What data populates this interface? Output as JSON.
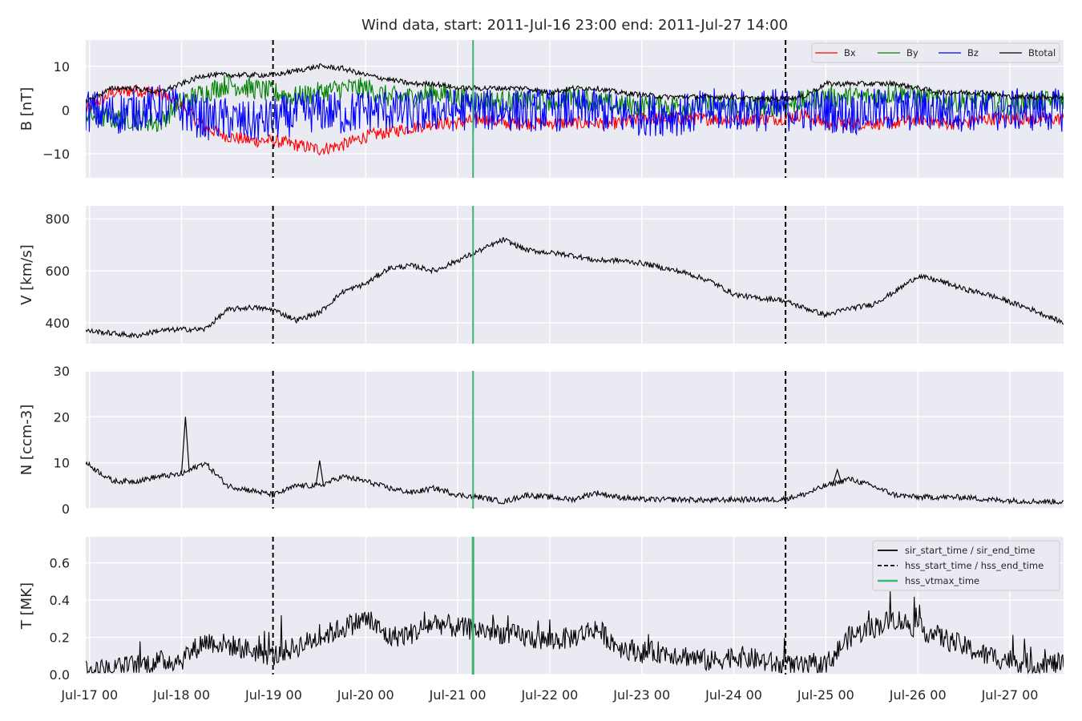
{
  "title": "Wind data, start: 2011-Jul-16 23:00  end: 2011-Jul-27 14:00",
  "colors": {
    "background": "#eaeaf2",
    "grid": "#ffffff",
    "Bx": "#ff0000",
    "By": "#008000",
    "Bz": "#0000ff",
    "Btotal": "#000000",
    "event_line": "#000000",
    "vtmax_line": "#3cb371"
  },
  "chart_data": [
    {
      "type": "line",
      "ylabel": "B [nT]",
      "yticks": [
        -10,
        0,
        10
      ],
      "ylim": [
        -15.5,
        16
      ],
      "grid": true,
      "legend_position": "top-right",
      "legend_layout": "one row",
      "xtick_labels": [],
      "series": [
        {
          "name": "Bx",
          "color": "#ff0000",
          "x": [
            "2011-07-16 23:00",
            "2011-07-17 06:00",
            "2011-07-17 12:00",
            "2011-07-17 18:00",
            "2011-07-18 00:00",
            "2011-07-18 06:00",
            "2011-07-18 12:00",
            "2011-07-18 18:00",
            "2011-07-19 00:00",
            "2011-07-19 06:00",
            "2011-07-19 12:00",
            "2011-07-19 18:00",
            "2011-07-20 00:00",
            "2011-07-20 06:00",
            "2011-07-20 12:00",
            "2011-07-20 18:00",
            "2011-07-21 00:00",
            "2011-07-21 06:00",
            "2011-07-21 12:00",
            "2011-07-21 18:00",
            "2011-07-22 00:00",
            "2011-07-22 06:00",
            "2011-07-22 12:00",
            "2011-07-22 18:00",
            "2011-07-23 00:00",
            "2011-07-23 06:00",
            "2011-07-23 12:00",
            "2011-07-23 18:00",
            "2011-07-24 00:00",
            "2011-07-24 06:00",
            "2011-07-24 12:00",
            "2011-07-24 18:00",
            "2011-07-25 00:00",
            "2011-07-25 06:00",
            "2011-07-25 12:00",
            "2011-07-25 18:00",
            "2011-07-26 00:00",
            "2011-07-26 06:00",
            "2011-07-26 12:00",
            "2011-07-26 18:00",
            "2011-07-27 00:00",
            "2011-07-27 06:00",
            "2011-07-27 14:00"
          ],
          "y": [
            0,
            4,
            4.5,
            4,
            1,
            -4,
            -6,
            -7,
            -7,
            -8,
            -9,
            -8,
            -6,
            -5,
            -4,
            -3,
            -3,
            -2,
            -3,
            -3,
            -3,
            -3,
            -3,
            -3,
            -2,
            -2,
            -2,
            -2,
            -2,
            -2,
            -2,
            -1,
            -3,
            -3,
            -3,
            -3,
            -2,
            -3,
            -3,
            -2,
            -2,
            -2,
            -2
          ],
          "amp": 1.5
        },
        {
          "name": "By",
          "color": "#008000",
          "x": [
            "2011-07-16 23:00",
            "2011-07-17 06:00",
            "2011-07-17 12:00",
            "2011-07-17 18:00",
            "2011-07-18 00:00",
            "2011-07-18 06:00",
            "2011-07-18 12:00",
            "2011-07-18 18:00",
            "2011-07-19 00:00",
            "2011-07-19 06:00",
            "2011-07-19 12:00",
            "2011-07-19 18:00",
            "2011-07-20 00:00",
            "2011-07-20 06:00",
            "2011-07-20 12:00",
            "2011-07-20 18:00",
            "2011-07-21 00:00",
            "2011-07-21 06:00",
            "2011-07-21 12:00",
            "2011-07-21 18:00",
            "2011-07-22 00:00",
            "2011-07-22 06:00",
            "2011-07-22 12:00",
            "2011-07-22 18:00",
            "2011-07-23 00:00",
            "2011-07-23 06:00",
            "2011-07-23 12:00",
            "2011-07-23 18:00",
            "2011-07-24 00:00",
            "2011-07-24 06:00",
            "2011-07-24 12:00",
            "2011-07-24 18:00",
            "2011-07-25 00:00",
            "2011-07-25 06:00",
            "2011-07-25 12:00",
            "2011-07-25 18:00",
            "2011-07-26 00:00",
            "2011-07-26 06:00",
            "2011-07-26 12:00",
            "2011-07-26 18:00",
            "2011-07-27 00:00",
            "2011-07-27 06:00",
            "2011-07-27 14:00"
          ],
          "y": [
            -1,
            -2,
            -2,
            -3,
            2,
            4,
            6,
            5,
            4,
            3,
            4,
            5,
            5,
            3,
            3,
            4,
            3,
            2,
            2,
            2,
            2,
            3,
            2,
            1,
            1,
            1,
            1,
            1,
            1,
            1,
            1,
            2,
            3,
            3,
            3,
            4,
            3,
            2,
            2,
            2,
            1,
            2,
            2
          ],
          "amp": 2.5
        },
        {
          "name": "Bz",
          "color": "#0000ff",
          "x": [
            "2011-07-16 23:00",
            "2011-07-17 06:00",
            "2011-07-17 12:00",
            "2011-07-17 18:00",
            "2011-07-18 00:00",
            "2011-07-18 06:00",
            "2011-07-18 12:00",
            "2011-07-18 18:00",
            "2011-07-19 00:00",
            "2011-07-19 06:00",
            "2011-07-19 12:00",
            "2011-07-19 18:00",
            "2011-07-20 00:00",
            "2011-07-20 06:00",
            "2011-07-20 12:00",
            "2011-07-20 18:00",
            "2011-07-21 00:00",
            "2011-07-21 06:00",
            "2011-07-21 12:00",
            "2011-07-21 18:00",
            "2011-07-22 00:00",
            "2011-07-22 06:00",
            "2011-07-22 12:00",
            "2011-07-22 18:00",
            "2011-07-23 00:00",
            "2011-07-23 06:00",
            "2011-07-23 12:00",
            "2011-07-23 18:00",
            "2011-07-24 00:00",
            "2011-07-24 06:00",
            "2011-07-24 12:00",
            "2011-07-24 18:00",
            "2011-07-25 00:00",
            "2011-07-25 06:00",
            "2011-07-25 12:00",
            "2011-07-25 18:00",
            "2011-07-26 00:00",
            "2011-07-26 06:00",
            "2011-07-26 12:00",
            "2011-07-26 18:00",
            "2011-07-27 00:00",
            "2011-07-27 06:00",
            "2011-07-27 14:00"
          ],
          "y": [
            0,
            -1,
            0,
            1,
            0,
            -2,
            -2,
            -3,
            -2,
            -1,
            0,
            -1,
            0,
            0,
            -1,
            0,
            0,
            0,
            0,
            0,
            0,
            0,
            0,
            -1,
            -1,
            -1,
            -1,
            0,
            0,
            0,
            0,
            0,
            0,
            -1,
            0,
            0,
            0,
            0,
            0,
            0,
            0,
            0,
            0
          ],
          "amp": 5
        },
        {
          "name": "Btotal",
          "color": "#000000",
          "x": [
            "2011-07-16 23:00",
            "2011-07-17 06:00",
            "2011-07-17 12:00",
            "2011-07-17 18:00",
            "2011-07-18 00:00",
            "2011-07-18 06:00",
            "2011-07-18 12:00",
            "2011-07-18 18:00",
            "2011-07-19 00:00",
            "2011-07-19 06:00",
            "2011-07-19 12:00",
            "2011-07-19 18:00",
            "2011-07-20 00:00",
            "2011-07-20 06:00",
            "2011-07-20 12:00",
            "2011-07-20 18:00",
            "2011-07-21 00:00",
            "2011-07-21 06:00",
            "2011-07-21 12:00",
            "2011-07-21 18:00",
            "2011-07-22 00:00",
            "2011-07-22 06:00",
            "2011-07-22 12:00",
            "2011-07-22 18:00",
            "2011-07-23 00:00",
            "2011-07-23 06:00",
            "2011-07-23 12:00",
            "2011-07-23 18:00",
            "2011-07-24 00:00",
            "2011-07-24 06:00",
            "2011-07-24 12:00",
            "2011-07-24 18:00",
            "2011-07-25 00:00",
            "2011-07-25 06:00",
            "2011-07-25 12:00",
            "2011-07-25 18:00",
            "2011-07-26 00:00",
            "2011-07-26 06:00",
            "2011-07-26 12:00",
            "2011-07-26 18:00",
            "2011-07-27 00:00",
            "2011-07-27 06:00",
            "2011-07-27 14:00"
          ],
          "y": [
            2,
            5,
            5,
            4,
            6,
            8,
            8,
            8,
            8,
            9,
            10,
            9.5,
            8,
            7,
            6,
            6,
            5,
            5,
            5,
            5,
            4,
            5,
            5,
            4,
            3.5,
            3,
            3,
            3,
            3,
            2.5,
            2.5,
            3,
            6,
            6,
            6,
            6,
            5,
            4,
            4,
            4,
            3,
            3,
            3
          ],
          "amp": 0.6
        }
      ]
    },
    {
      "type": "line",
      "ylabel": "V [km/s]",
      "yticks": [
        400,
        600,
        800
      ],
      "ylim": [
        320,
        850
      ],
      "grid": true,
      "xtick_labels": [],
      "series": [
        {
          "color": "#000000",
          "x": [
            "2011-07-16 23:00",
            "2011-07-17 06:00",
            "2011-07-17 12:00",
            "2011-07-17 18:00",
            "2011-07-18 00:00",
            "2011-07-18 06:00",
            "2011-07-18 12:00",
            "2011-07-18 18:00",
            "2011-07-19 00:00",
            "2011-07-19 06:00",
            "2011-07-19 12:00",
            "2011-07-19 18:00",
            "2011-07-20 00:00",
            "2011-07-20 06:00",
            "2011-07-20 12:00",
            "2011-07-20 18:00",
            "2011-07-21 00:00",
            "2011-07-21 06:00",
            "2011-07-21 12:00",
            "2011-07-21 18:00",
            "2011-07-22 00:00",
            "2011-07-22 06:00",
            "2011-07-22 12:00",
            "2011-07-22 18:00",
            "2011-07-23 00:00",
            "2011-07-23 06:00",
            "2011-07-23 12:00",
            "2011-07-23 18:00",
            "2011-07-24 00:00",
            "2011-07-24 06:00",
            "2011-07-24 12:00",
            "2011-07-24 18:00",
            "2011-07-25 00:00",
            "2011-07-25 06:00",
            "2011-07-25 12:00",
            "2011-07-25 18:00",
            "2011-07-26 00:00",
            "2011-07-26 06:00",
            "2011-07-26 12:00",
            "2011-07-26 18:00",
            "2011-07-27 00:00",
            "2011-07-27 06:00",
            "2011-07-27 14:00"
          ],
          "y": [
            370,
            360,
            350,
            370,
            375,
            375,
            450,
            460,
            450,
            410,
            440,
            520,
            550,
            610,
            620,
            600,
            640,
            680,
            720,
            680,
            670,
            660,
            640,
            640,
            630,
            610,
            590,
            560,
            510,
            495,
            490,
            460,
            430,
            455,
            470,
            520,
            580,
            560,
            530,
            510,
            480,
            450,
            400
          ],
          "amp": 10
        }
      ]
    },
    {
      "type": "line",
      "ylabel": "N [ccm-3]",
      "yticks": [
        0,
        10,
        20,
        30
      ],
      "ylim": [
        0,
        30
      ],
      "grid": true,
      "xtick_labels": [],
      "series": [
        {
          "color": "#000000",
          "x": [
            "2011-07-16 23:00",
            "2011-07-17 06:00",
            "2011-07-17 12:00",
            "2011-07-17 18:00",
            "2011-07-18 00:00",
            "2011-07-18 06:00",
            "2011-07-18 12:00",
            "2011-07-18 18:00",
            "2011-07-19 00:00",
            "2011-07-19 06:00",
            "2011-07-19 12:00",
            "2011-07-19 18:00",
            "2011-07-20 00:00",
            "2011-07-20 06:00",
            "2011-07-20 12:00",
            "2011-07-20 18:00",
            "2011-07-21 00:00",
            "2011-07-21 06:00",
            "2011-07-21 12:00",
            "2011-07-21 18:00",
            "2011-07-22 00:00",
            "2011-07-22 06:00",
            "2011-07-22 12:00",
            "2011-07-22 18:00",
            "2011-07-23 00:00",
            "2011-07-23 06:00",
            "2011-07-23 12:00",
            "2011-07-23 18:00",
            "2011-07-24 00:00",
            "2011-07-24 06:00",
            "2011-07-24 12:00",
            "2011-07-24 18:00",
            "2011-07-25 00:00",
            "2011-07-25 06:00",
            "2011-07-25 12:00",
            "2011-07-25 18:00",
            "2011-07-26 00:00",
            "2011-07-26 06:00",
            "2011-07-26 12:00",
            "2011-07-26 18:00",
            "2011-07-27 00:00",
            "2011-07-27 06:00",
            "2011-07-27 14:00"
          ],
          "y": [
            10,
            6,
            6,
            7,
            7.5,
            10,
            5,
            4,
            3,
            5,
            5,
            7,
            6,
            4.5,
            3.5,
            4.5,
            3,
            2.5,
            1.5,
            3,
            2.5,
            2,
            3.5,
            2.5,
            2,
            2,
            2,
            1.8,
            2,
            2,
            2,
            3,
            5,
            6.5,
            5,
            3,
            2.5,
            2.5,
            2.5,
            2,
            1.8,
            1.6,
            1.5
          ],
          "amp": 0.6,
          "spikes": [
            {
              "x": "2011-07-18 01:00",
              "y": 20
            },
            {
              "x": "2011-07-19 12:00",
              "y": 10.5
            },
            {
              "x": "2011-07-25 03:00",
              "y": 8.5
            }
          ]
        }
      ]
    },
    {
      "type": "line",
      "ylabel": "T [MK]",
      "yticks": [
        0.0,
        0.2,
        0.4,
        0.6
      ],
      "ylim": [
        0,
        0.74
      ],
      "grid": true,
      "legend_position": "top-right",
      "xtick_labels": [
        "Jul-17 00",
        "Jul-18 00",
        "Jul-19 00",
        "Jul-20 00",
        "Jul-21 00",
        "Jul-22 00",
        "Jul-23 00",
        "Jul-24 00",
        "Jul-25 00",
        "Jul-26 00",
        "Jul-27 00"
      ],
      "series": [
        {
          "color": "#000000",
          "x": [
            "2011-07-16 23:00",
            "2011-07-17 06:00",
            "2011-07-17 12:00",
            "2011-07-17 18:00",
            "2011-07-18 00:00",
            "2011-07-18 06:00",
            "2011-07-18 12:00",
            "2011-07-18 18:00",
            "2011-07-19 00:00",
            "2011-07-19 06:00",
            "2011-07-19 12:00",
            "2011-07-19 18:00",
            "2011-07-20 00:00",
            "2011-07-20 06:00",
            "2011-07-20 12:00",
            "2011-07-20 18:00",
            "2011-07-21 00:00",
            "2011-07-21 06:00",
            "2011-07-21 12:00",
            "2011-07-21 18:00",
            "2011-07-22 00:00",
            "2011-07-22 06:00",
            "2011-07-22 12:00",
            "2011-07-22 18:00",
            "2011-07-23 00:00",
            "2011-07-23 06:00",
            "2011-07-23 12:00",
            "2011-07-23 18:00",
            "2011-07-24 00:00",
            "2011-07-24 06:00",
            "2011-07-24 12:00",
            "2011-07-24 18:00",
            "2011-07-25 00:00",
            "2011-07-25 06:00",
            "2011-07-25 12:00",
            "2011-07-25 18:00",
            "2011-07-26 00:00",
            "2011-07-26 06:00",
            "2011-07-26 12:00",
            "2011-07-26 18:00",
            "2011-07-27 00:00",
            "2011-07-27 06:00",
            "2011-07-27 14:00"
          ],
          "y": [
            0.02,
            0.03,
            0.05,
            0.07,
            0.08,
            0.18,
            0.16,
            0.13,
            0.1,
            0.15,
            0.2,
            0.25,
            0.3,
            0.2,
            0.22,
            0.28,
            0.25,
            0.24,
            0.22,
            0.2,
            0.18,
            0.2,
            0.25,
            0.15,
            0.12,
            0.12,
            0.1,
            0.07,
            0.1,
            0.08,
            0.05,
            0.04,
            0.05,
            0.2,
            0.25,
            0.3,
            0.25,
            0.2,
            0.15,
            0.1,
            0.08,
            0.05,
            0.06
          ],
          "amp": 0.06
        }
      ],
      "legend": [
        {
          "label": "sir_start_time / sir_end_time",
          "style": "solid",
          "color": "#000000"
        },
        {
          "label": "hss_start_time / hss_end_time",
          "style": "dashed",
          "color": "#000000"
        },
        {
          "label": "hss_vtmax_time",
          "style": "solid",
          "color": "#3cb371"
        }
      ]
    }
  ],
  "events": {
    "hss_start_time": "2011-07-18 23:50",
    "hss_vtmax_time": "2011-07-21 04:00",
    "hss_end_time": "2011-07-24 13:30"
  }
}
